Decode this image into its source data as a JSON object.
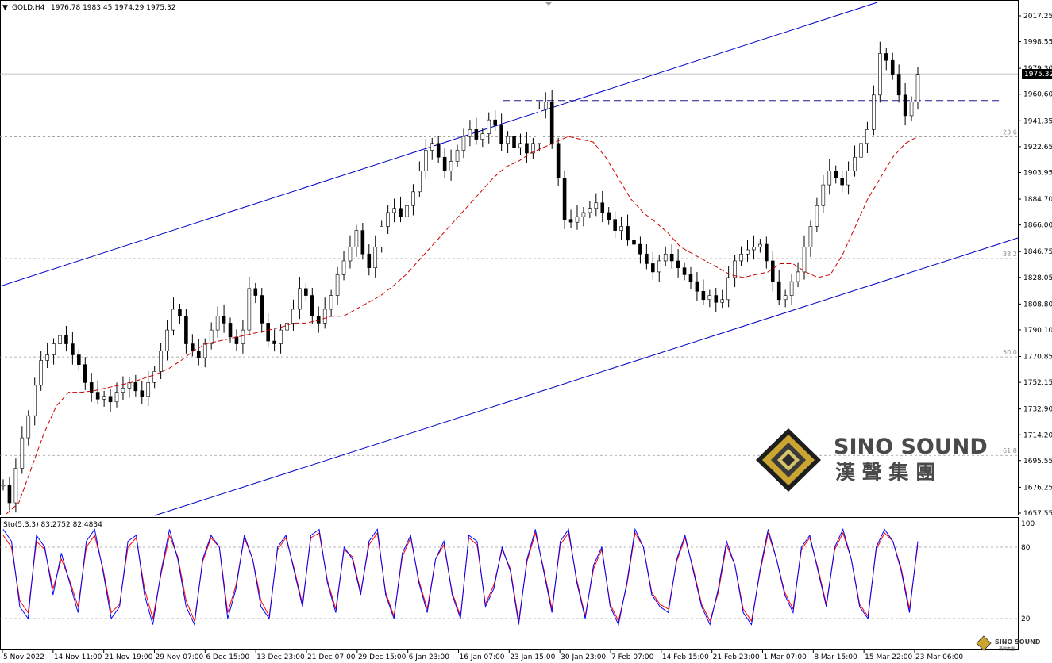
{
  "header": {
    "symbol": "GOLD,H4",
    "ohlc": "1976.78 1983.45 1974.29 1975.32"
  },
  "current_price_label": "1975.32",
  "price_axis_labels": [
    "2017.25",
    "1998.55",
    "1979.30",
    "1960.60",
    "1941.35",
    "1922.65",
    "1903.95",
    "1884.70",
    "1866.00",
    "1846.75",
    "1828.05",
    "1808.80",
    "1790.10",
    "1770.85",
    "1752.15",
    "1732.90",
    "1714.20",
    "1695.55",
    "1676.25",
    "1657.55"
  ],
  "fib_levels": [
    {
      "label": "23.6",
      "price": 1929.8
    },
    {
      "label": "38.2",
      "price": 1841.7
    },
    {
      "label": "50.0",
      "price": 1770.5
    },
    {
      "label": "61.8",
      "price": 1699.3
    }
  ],
  "resistance_level": 1956.0,
  "time_axis_labels": [
    "5 Nov 2022",
    "14 Nov 11:00",
    "21 Nov 19:00",
    "29 Nov 07:00",
    "6 Dec 15:00",
    "13 Dec 23:00",
    "21 Dec 07:00",
    "29 Dec 15:00",
    "6 Jan 23:00",
    "16 Jan 07:00",
    "23 Jan 15:00",
    "30 Jan 23:00",
    "7 Feb 07:00",
    "14 Feb 15:00",
    "21 Feb 23:00",
    "1 Mar 07:00",
    "8 Mar 15:00",
    "15 Mar 22:00",
    "23 Mar 06:00"
  ],
  "stoch": {
    "label": "Sto(5,3,3) 83.2752 82.4834",
    "levels": [
      "100",
      "80",
      "20"
    ],
    "main_color": "#0000ff",
    "signal_color": "#ff0000"
  },
  "watermark": {
    "brand_en": "SINO SOUND",
    "brand_cn": "漢 聲 集 團",
    "small_en": "SINO SOUND",
    "small_cn": "漢聲集團"
  },
  "chart_data": {
    "type": "candlestick",
    "symbol": "GOLD",
    "timeframe": "H4",
    "ylim": [
      1657.55,
      2017.25
    ],
    "series_close_approx": [
      1678,
      1665,
      1690,
      1712,
      1728,
      1750,
      1768,
      1772,
      1780,
      1786,
      1780,
      1772,
      1765,
      1752,
      1745,
      1740,
      1742,
      1738,
      1745,
      1748,
      1752,
      1746,
      1742,
      1752,
      1760,
      1775,
      1790,
      1805,
      1800,
      1780,
      1775,
      1770,
      1780,
      1790,
      1800,
      1795,
      1785,
      1780,
      1790,
      1820,
      1815,
      1795,
      1782,
      1780,
      1790,
      1795,
      1805,
      1820,
      1815,
      1800,
      1795,
      1805,
      1815,
      1830,
      1840,
      1850,
      1862,
      1845,
      1835,
      1850,
      1865,
      1875,
      1878,
      1872,
      1880,
      1890,
      1905,
      1920,
      1925,
      1915,
      1905,
      1912,
      1920,
      1930,
      1935,
      1928,
      1932,
      1942,
      1938,
      1925,
      1930,
      1922,
      1925,
      1918,
      1925,
      1950,
      1955,
      1925,
      1900,
      1870,
      1868,
      1872,
      1875,
      1878,
      1882,
      1875,
      1870,
      1862,
      1865,
      1855,
      1852,
      1845,
      1838,
      1832,
      1840,
      1845,
      1840,
      1835,
      1830,
      1825,
      1818,
      1812,
      1815,
      1810,
      1812,
      1828,
      1840,
      1845,
      1848,
      1850,
      1852,
      1840,
      1825,
      1812,
      1815,
      1825,
      1832,
      1850,
      1865,
      1880,
      1895,
      1905,
      1900,
      1895,
      1905,
      1915,
      1925,
      1935,
      1960,
      1990,
      1985,
      1975,
      1960,
      1945,
      1955,
      1975
    ],
    "sma_approx": [
      1657,
      1665,
      1690,
      1715,
      1735,
      1745,
      1745,
      1746,
      1748,
      1750,
      1752,
      1755,
      1758,
      1762,
      1768,
      1775,
      1780,
      1782,
      1784,
      1786,
      1788,
      1790,
      1792,
      1795,
      1795,
      1797,
      1800,
      1800,
      1805,
      1810,
      1815,
      1822,
      1830,
      1840,
      1850,
      1860,
      1870,
      1880,
      1890,
      1900,
      1908,
      1912,
      1918,
      1922,
      1926,
      1930,
      1928,
      1926,
      1915,
      1900,
      1885,
      1875,
      1868,
      1860,
      1850,
      1845,
      1840,
      1835,
      1830,
      1828,
      1830,
      1832,
      1838,
      1838,
      1832,
      1828,
      1830,
      1845,
      1865,
      1885,
      1900,
      1915,
      1925,
      1930
    ],
    "stoch_main_approx": [
      95,
      85,
      30,
      20,
      90,
      80,
      40,
      75,
      50,
      25,
      85,
      95,
      60,
      20,
      30,
      85,
      90,
      40,
      15,
      60,
      95,
      70,
      30,
      15,
      70,
      90,
      80,
      20,
      45,
      90,
      70,
      30,
      20,
      80,
      90,
      60,
      30,
      90,
      95,
      50,
      25,
      80,
      70,
      40,
      85,
      95,
      40,
      20,
      75,
      90,
      50,
      25,
      70,
      85,
      40,
      20,
      90,
      85,
      30,
      45,
      80,
      60,
      15,
      70,
      95,
      60,
      25,
      85,
      95,
      50,
      20,
      65,
      80,
      30,
      15,
      50,
      95,
      80,
      40,
      30,
      25,
      70,
      90,
      60,
      30,
      15,
      45,
      85,
      65,
      25,
      15,
      60,
      95,
      70,
      40,
      25,
      80,
      90,
      60,
      30,
      80,
      95,
      70,
      30,
      20,
      80,
      95,
      85,
      60,
      25,
      85
    ],
    "stoch_signal_approx": [
      90,
      80,
      35,
      25,
      85,
      78,
      45,
      70,
      52,
      30,
      80,
      90,
      62,
      25,
      32,
      80,
      88,
      45,
      20,
      58,
      90,
      72,
      35,
      18,
      68,
      88,
      80,
      25,
      48,
      88,
      70,
      35,
      22,
      78,
      88,
      62,
      32,
      88,
      92,
      52,
      28,
      78,
      72,
      42,
      82,
      92,
      42,
      22,
      72,
      88,
      52,
      28,
      70,
      82,
      42,
      22,
      88,
      82,
      32,
      48,
      78,
      62,
      18,
      68,
      92,
      62,
      28,
      82,
      92,
      52,
      22,
      62,
      78,
      32,
      18,
      48,
      92,
      80,
      42,
      32,
      28,
      68,
      88,
      62,
      32,
      18,
      42,
      82,
      65,
      28,
      18,
      58,
      92,
      70,
      42,
      28,
      78,
      88,
      62,
      32,
      78,
      92,
      70,
      32,
      22,
      78,
      92,
      85,
      62,
      28,
      82
    ]
  }
}
